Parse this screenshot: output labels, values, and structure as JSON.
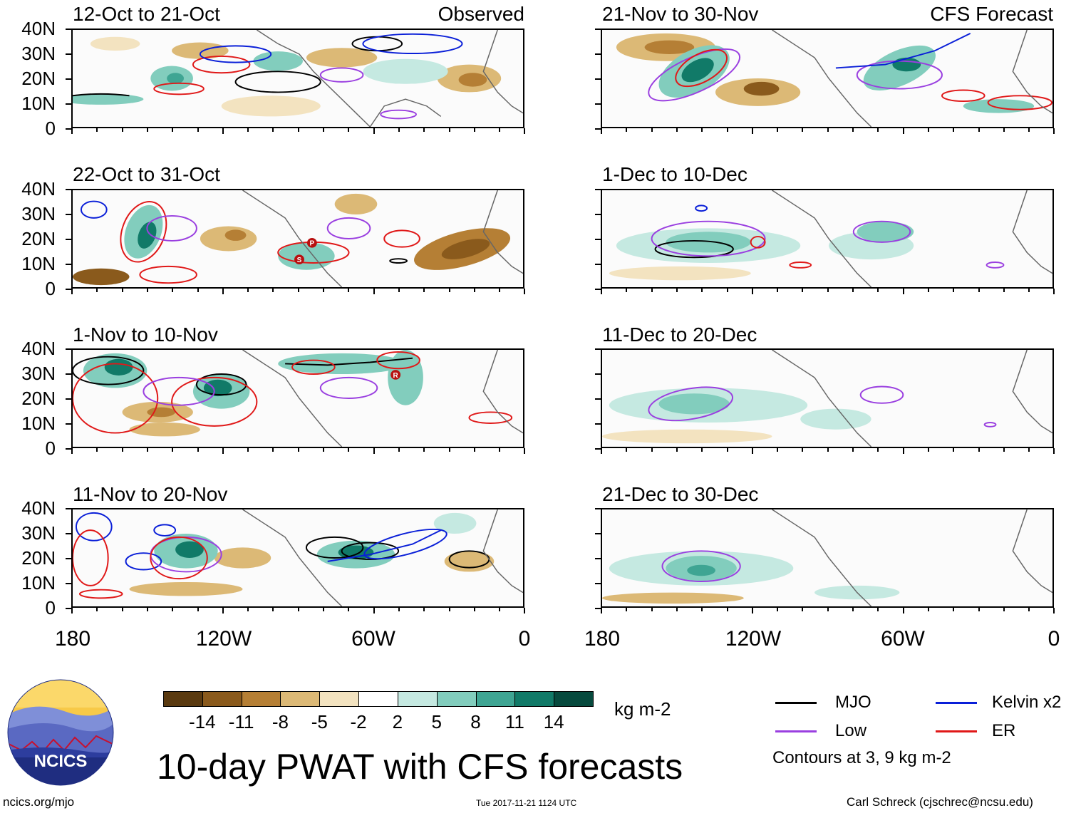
{
  "panels": [
    {
      "title": "12-Oct to 21-Oct",
      "label": "Observed"
    },
    {
      "title": "21-Nov to 30-Nov",
      "label": "CFS Forecast"
    },
    {
      "title": "22-Oct to 31-Oct",
      "label": ""
    },
    {
      "title": "1-Dec to 10-Dec",
      "label": ""
    },
    {
      "title": "1-Nov to 10-Nov",
      "label": ""
    },
    {
      "title": "11-Dec to 20-Dec",
      "label": ""
    },
    {
      "title": "11-Nov to 20-Nov",
      "label": ""
    },
    {
      "title": "21-Dec to 30-Dec",
      "label": ""
    }
  ],
  "lat_labels": [
    "40N",
    "30N",
    "20N",
    "10N",
    "0"
  ],
  "lon_labels": [
    "180",
    "120W",
    "60W",
    "0"
  ],
  "colorbar": {
    "unit": "kg m-2",
    "labels": [
      "-14",
      "-11",
      "-8",
      "-5",
      "-2",
      "2",
      "5",
      "8",
      "11",
      "14"
    ],
    "colors": [
      "#5a3a10",
      "#8a5a1c",
      "#b57f35",
      "#dcb976",
      "#f3e3c0",
      "#ffffff",
      "#c5e9e1",
      "#82cdbd",
      "#3fa593",
      "#117a68",
      "#074a3e"
    ]
  },
  "legend": {
    "items": [
      {
        "label": "MJO",
        "color": "#000000"
      },
      {
        "label": "Kelvin x2",
        "color": "#0a1fd8"
      },
      {
        "label": "Low",
        "color": "#9a3fe0"
      },
      {
        "label": "ER",
        "color": "#e01818"
      }
    ],
    "note": "Contours at 3, 9 kg m-2"
  },
  "footer": {
    "title": "10-day PWAT with CFS forecasts",
    "website": "ncics.org/mjo",
    "timestamp": "Tue 2017-11-21 1124 UTC",
    "author": "Carl Schreck (cjschrec@ncsu.edu)",
    "logo_text": "NCICS"
  },
  "storm_markers": [
    "P",
    "S",
    "R"
  ]
}
